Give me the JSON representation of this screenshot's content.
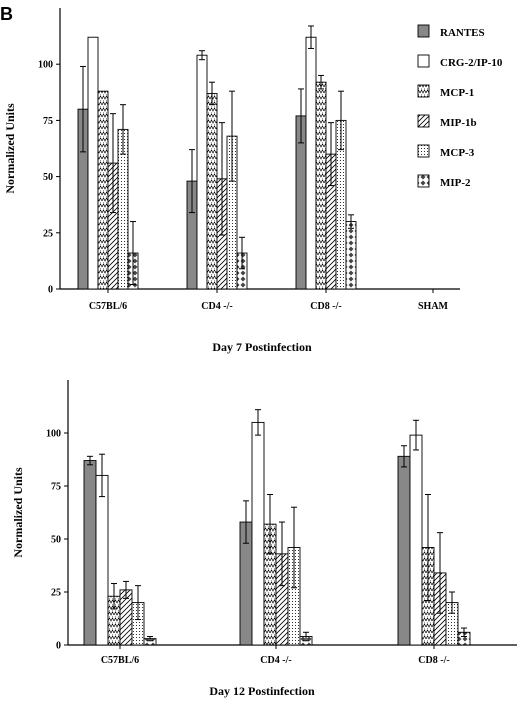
{
  "panel_label": "B",
  "legend": [
    "RANTES",
    "CRG-2/IP-10",
    "MCP-1",
    "MIP-1b",
    "MCP-3",
    "MIP-2"
  ],
  "chart_data": [
    {
      "type": "bar",
      "title": "Day 7 Postinfection",
      "ylabel": "Normalized Units",
      "ylim": [
        0,
        125
      ],
      "yticks": [
        0,
        25,
        50,
        75,
        100
      ],
      "categories": [
        "C57BL/6",
        "CD4 -/-",
        "CD8 -/-",
        "SHAM"
      ],
      "grid": false,
      "legend_position": "right",
      "series": [
        {
          "name": "RANTES",
          "values": [
            80,
            48,
            77,
            null
          ],
          "errors": [
            19,
            14,
            12,
            null
          ]
        },
        {
          "name": "CRG-2/IP-10",
          "values": [
            112,
            104,
            112,
            null
          ],
          "errors": [
            0,
            2,
            5,
            null
          ]
        },
        {
          "name": "MCP-1",
          "values": [
            88,
            87,
            92,
            null
          ],
          "errors": [
            0,
            5,
            3,
            null
          ]
        },
        {
          "name": "MIP-1b",
          "values": [
            56,
            49,
            60,
            null
          ],
          "errors": [
            22,
            25,
            14,
            null
          ]
        },
        {
          "name": "MCP-3",
          "values": [
            71,
            68,
            75,
            null
          ],
          "errors": [
            11,
            20,
            13,
            null
          ]
        },
        {
          "name": "MIP-2",
          "values": [
            16,
            16,
            30,
            null
          ],
          "errors": [
            14,
            7,
            3,
            null
          ]
        }
      ]
    },
    {
      "type": "bar",
      "title": "Day 12 Postinfection",
      "ylabel": "Normalized  Units",
      "ylim": [
        0,
        125
      ],
      "yticks": [
        0,
        25,
        50,
        75,
        100
      ],
      "categories": [
        "C57BL/6",
        "CD4 -/-",
        "CD8 -/-"
      ],
      "grid": false,
      "series": [
        {
          "name": "RANTES",
          "values": [
            87,
            58,
            89
          ],
          "errors": [
            2,
            10,
            5
          ]
        },
        {
          "name": "CRG-2/IP-10",
          "values": [
            80,
            105,
            99
          ],
          "errors": [
            10,
            6,
            7
          ]
        },
        {
          "name": "MCP-1",
          "values": [
            23,
            57,
            46
          ],
          "errors": [
            6,
            14,
            25
          ]
        },
        {
          "name": "MIP-1b",
          "values": [
            26,
            43,
            34
          ],
          "errors": [
            4,
            15,
            19
          ]
        },
        {
          "name": "MCP-3",
          "values": [
            20,
            46,
            20
          ],
          "errors": [
            8,
            19,
            5
          ]
        },
        {
          "name": "MIP-2",
          "values": [
            3,
            4,
            6
          ],
          "errors": [
            1,
            2,
            2
          ]
        }
      ]
    }
  ]
}
